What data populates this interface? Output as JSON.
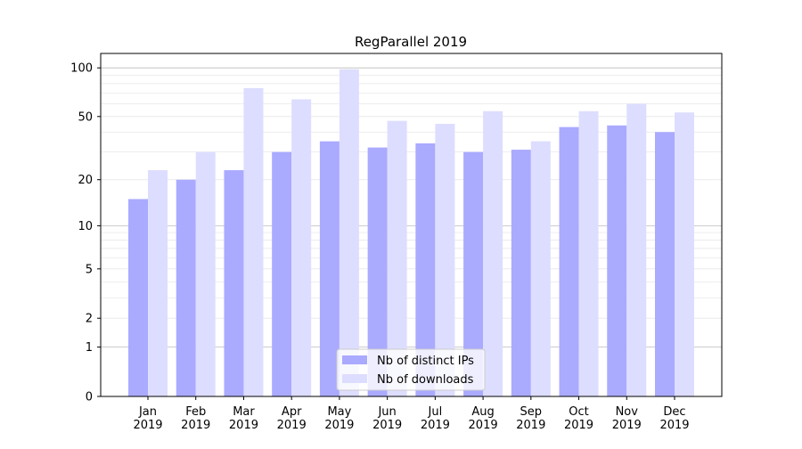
{
  "chart_data": {
    "type": "bar",
    "title": "RegParallel 2019",
    "xlabel": "",
    "ylabel": "",
    "yscale": "symlog (log10(1+y))",
    "ylim": [
      0,
      120
    ],
    "yticks": [
      0,
      1,
      2,
      5,
      10,
      20,
      50,
      100
    ],
    "grid": true,
    "legend_position": "lower center",
    "categories": [
      "Jan\n2019",
      "Feb\n2019",
      "Mar\n2019",
      "Apr\n2019",
      "May\n2019",
      "Jun\n2019",
      "Jul\n2019",
      "Aug\n2019",
      "Sep\n2019",
      "Oct\n2019",
      "Nov\n2019",
      "Dec\n2019"
    ],
    "series": [
      {
        "name": "Nb of distinct IPs",
        "color": "#aaaaff",
        "values": [
          15,
          20,
          23,
          30,
          35,
          32,
          34,
          30,
          31,
          43,
          44,
          40
        ]
      },
      {
        "name": "Nb of downloads",
        "color": "#ddddff",
        "values": [
          23,
          30,
          75,
          64,
          98,
          47,
          45,
          54,
          35,
          54,
          60,
          53
        ]
      }
    ]
  }
}
